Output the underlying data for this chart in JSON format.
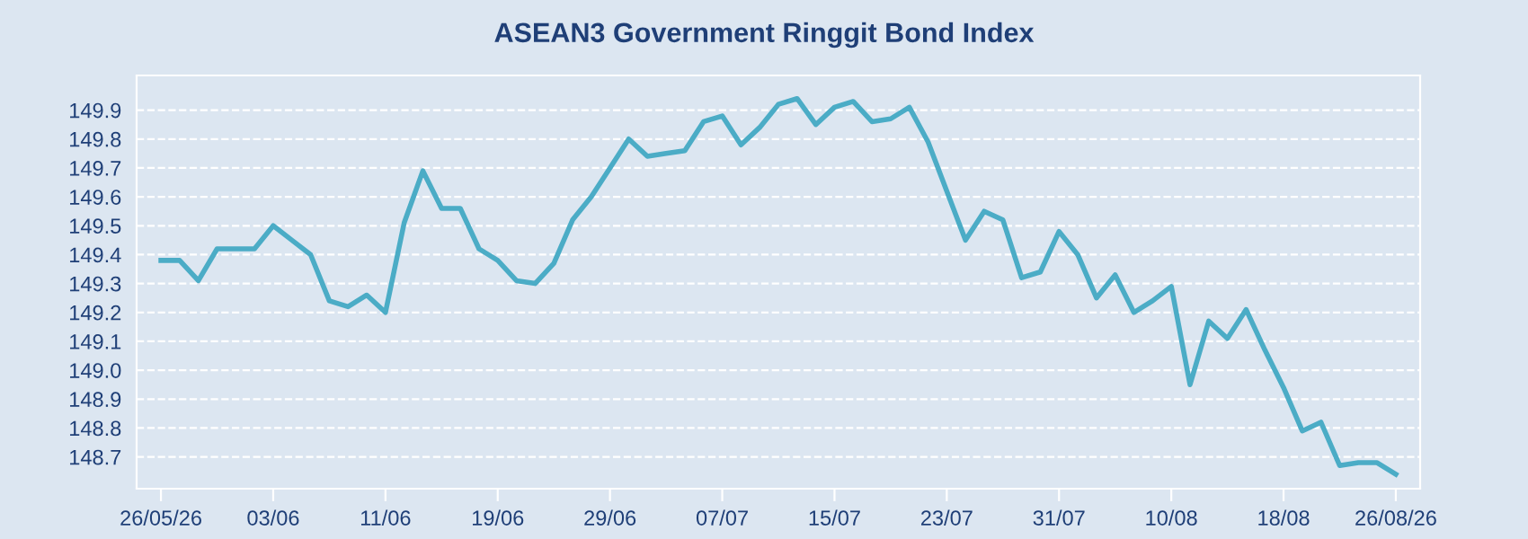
{
  "chart_data": {
    "type": "line",
    "title": "ASEAN3 Government Ringgit Bond Index",
    "categories": [
      "26/05/26",
      null,
      null,
      null,
      null,
      null,
      "03/06",
      null,
      null,
      null,
      null,
      null,
      "11/06",
      null,
      null,
      null,
      null,
      null,
      "19/06",
      null,
      null,
      null,
      null,
      null,
      "29/06",
      null,
      null,
      null,
      null,
      null,
      "07/07",
      null,
      null,
      null,
      null,
      null,
      "15/07",
      null,
      null,
      null,
      null,
      null,
      "23/07",
      null,
      null,
      null,
      null,
      null,
      "31/07",
      null,
      null,
      null,
      null,
      null,
      "10/08",
      null,
      null,
      null,
      null,
      null,
      "18/08",
      null,
      null,
      null,
      null,
      null,
      "26/08/26"
    ],
    "series": [
      {
        "color": "#4bacc6",
        "values": [
          149.38,
          149.38,
          149.31,
          149.42,
          149.42,
          149.42,
          149.5,
          149.45,
          149.4,
          149.24,
          149.22,
          149.26,
          149.2,
          149.51,
          149.69,
          149.56,
          149.56,
          149.42,
          149.38,
          149.31,
          149.3,
          149.37,
          149.52,
          149.6,
          149.7,
          149.8,
          149.74,
          149.75,
          149.76,
          149.86,
          149.88,
          149.78,
          149.84,
          149.92,
          149.94,
          149.85,
          149.91,
          149.93,
          149.86,
          149.87,
          149.91,
          149.79,
          149.62,
          149.45,
          149.55,
          149.52,
          149.32,
          149.34,
          149.48,
          149.4,
          149.25,
          149.33,
          149.2,
          149.24,
          149.29,
          148.95,
          149.17,
          149.11,
          149.21,
          149.07,
          148.94,
          148.79,
          148.82,
          148.67,
          148.68,
          148.68,
          148.64
        ]
      }
    ],
    "ylim": [
      148.59,
      150.02
    ],
    "yticks": [
      {
        "value": 148.7,
        "label": "148.7"
      },
      {
        "value": 148.8,
        "label": "148.8"
      },
      {
        "value": 148.9,
        "label": "148.9"
      },
      {
        "value": 149.0,
        "label": "149.0"
      },
      {
        "value": 149.1,
        "label": "149.1"
      },
      {
        "value": 149.2,
        "label": "149.2"
      },
      {
        "value": 149.3,
        "label": "149.3"
      },
      {
        "value": 149.4,
        "label": "149.4"
      },
      {
        "value": 149.5,
        "label": "149.5"
      },
      {
        "value": 149.6,
        "label": "149.6"
      },
      {
        "value": 149.7,
        "label": "149.7"
      },
      {
        "value": 149.8,
        "label": "149.8"
      },
      {
        "value": 149.9,
        "label": "149.9"
      }
    ],
    "grid": "y",
    "marker": "none",
    "line_style": "solid"
  }
}
